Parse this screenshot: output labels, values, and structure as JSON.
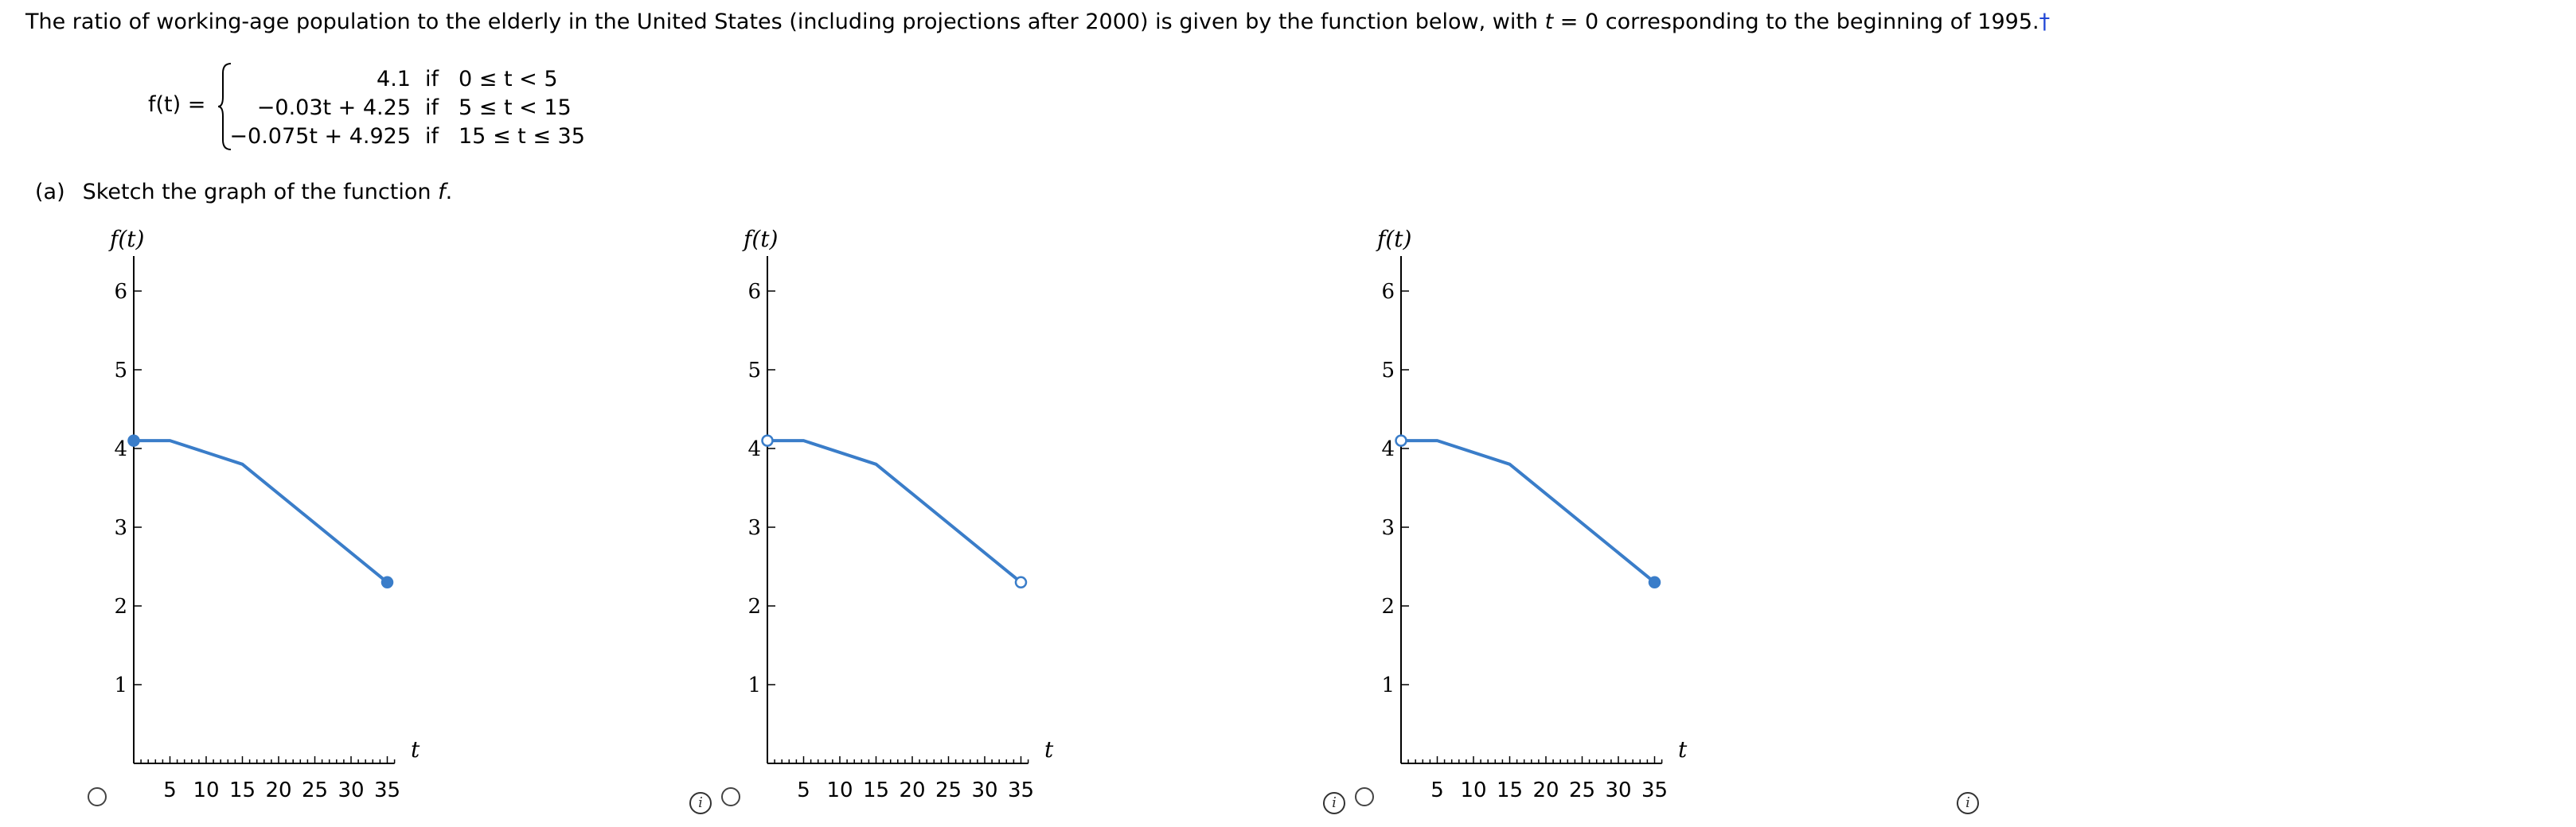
{
  "problem": {
    "text_1": "The ratio of working-age population to the elderly in the United States (including projections after 2000) is given by the function below, with ",
    "var_t": "t",
    "text_2": " = 0 corresponding to the beginning of 1995.",
    "footnote_mark": "†"
  },
  "function": {
    "label": "f(t) =",
    "pieces": [
      {
        "expr": "4.1",
        "if": "if",
        "cond": "0 ≤ t < 5"
      },
      {
        "expr": "−0.03t + 4.25",
        "if": "if",
        "cond": "5 ≤ t < 15"
      },
      {
        "expr": "−0.075t + 4.925",
        "if": "if",
        "cond": "15 ≤ t ≤ 35"
      }
    ]
  },
  "part_a": {
    "label": "(a)",
    "text": "Sketch the graph of the function ",
    "func": "f",
    "end": "."
  },
  "chart_data": [
    {
      "type": "line",
      "title": "",
      "xlabel": "t",
      "ylabel": "f(t)",
      "xlim": [
        0,
        36
      ],
      "ylim": [
        0,
        6.5
      ],
      "xticks": [
        5,
        10,
        15,
        20,
        25,
        30,
        35
      ],
      "yticks": [
        1,
        2,
        3,
        4,
        5,
        6
      ],
      "series": [
        {
          "x": [
            0,
            5,
            15,
            35
          ],
          "y": [
            4.1,
            4.1,
            3.8,
            2.3
          ]
        }
      ],
      "endpoints": {
        "start": "filled",
        "end": "filled"
      },
      "line_color": "#3a7dc9"
    },
    {
      "type": "line",
      "title": "",
      "xlabel": "t",
      "ylabel": "f(t)",
      "xlim": [
        0,
        36
      ],
      "ylim": [
        0,
        6.5
      ],
      "xticks": [
        5,
        10,
        15,
        20,
        25,
        30,
        35
      ],
      "yticks": [
        1,
        2,
        3,
        4,
        5,
        6
      ],
      "series": [
        {
          "x": [
            0,
            5,
            15,
            35
          ],
          "y": [
            4.1,
            4.1,
            3.8,
            2.3
          ]
        }
      ],
      "endpoints": {
        "start": "open",
        "end": "open"
      },
      "line_color": "#3a7dc9"
    },
    {
      "type": "line",
      "title": "",
      "xlabel": "t",
      "ylabel": "f(t)",
      "xlim": [
        0,
        36
      ],
      "ylim": [
        0,
        6.5
      ],
      "xticks": [
        5,
        10,
        15,
        20,
        25,
        30,
        35
      ],
      "yticks": [
        1,
        2,
        3,
        4,
        5,
        6
      ],
      "series": [
        {
          "x": [
            0,
            5,
            15,
            35
          ],
          "y": [
            4.1,
            4.1,
            3.8,
            2.3
          ]
        }
      ],
      "endpoints": {
        "start": "open",
        "end": "filled"
      },
      "line_color": "#3a7dc9"
    }
  ],
  "info_icon": "i"
}
